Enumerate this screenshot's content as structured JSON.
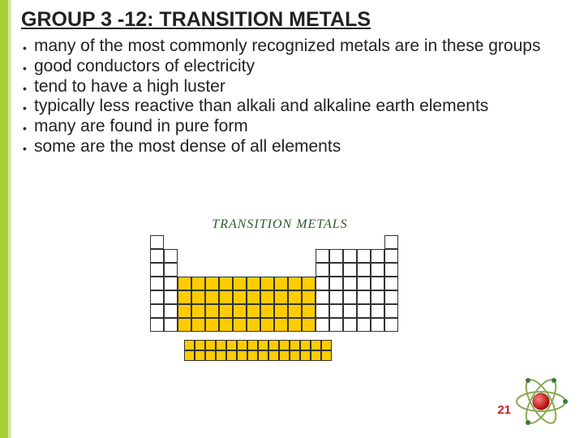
{
  "title": "GROUP 3 -12: TRANSITION METALS",
  "bullets": [
    "many of the most commonly recognized metals are in these groups",
    "good conductors of electricity",
    "tend to have a high luster",
    "typically less reactive than alkali and alkaline earth elements",
    "many are found in pure form",
    "some are the most dense of all elements"
  ],
  "diagram": {
    "label": "TRANSITION METALS",
    "cell_size": 17,
    "main_cols": 18,
    "main_rows": 7,
    "highlight_cols": [
      2,
      3,
      4,
      5,
      6,
      7,
      8,
      9,
      10,
      11
    ],
    "highlight_rows": [
      3,
      4,
      5,
      6
    ],
    "f_block_rows": 2,
    "f_block_cols": 14,
    "colors": {
      "highlight": "#ffcc00",
      "border": "#333333",
      "bg": "#ffffff"
    },
    "layout": {
      "row0": [
        [
          0,
          0
        ],
        [
          17,
          17
        ]
      ],
      "row1": [
        [
          0,
          1
        ],
        [
          12,
          17
        ]
      ],
      "row2": [
        [
          0,
          1
        ],
        [
          12,
          17
        ]
      ],
      "row3": [
        [
          0,
          17
        ]
      ],
      "row4": [
        [
          0,
          17
        ]
      ],
      "row5": [
        [
          0,
          17
        ]
      ],
      "row6": [
        [
          0,
          17
        ]
      ]
    }
  },
  "page_number": "21",
  "atom": {
    "nucleus_color": "#cc0000",
    "orbit_color": "#8aa84f",
    "electron_color": "#3a7a3a"
  },
  "accent_bar": "#a6ce39",
  "accent_bar_light": "#d7e8a8"
}
